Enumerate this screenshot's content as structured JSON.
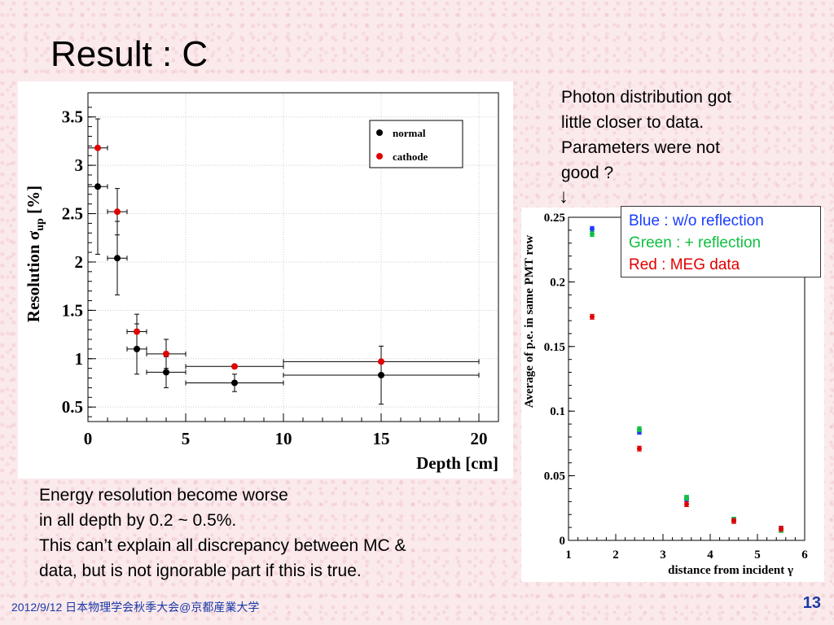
{
  "slide": {
    "title": "Result : C",
    "footer": "2012/9/12 日本物理学会秋季大会@京都産業大学",
    "page_number": "13",
    "note_right": [
      "Photon distribution got",
      "little closer to data.",
      "Parameters were not",
      "good ?"
    ],
    "arrow": "↓",
    "note_bottom": [
      "Energy resolution become worse",
      "in all depth by 0.2 ~ 0.5%.",
      "This can’t explain all discrepancy between MC &",
      "data, but is not ignorable part if this is true."
    ],
    "legend_right": [
      {
        "text": "Blue : w/o reflection",
        "color": "#1a3cff"
      },
      {
        "text": "Green : + reflection",
        "color": "#10c040"
      },
      {
        "text": "Red : MEG data",
        "color": "#e00000"
      }
    ]
  },
  "chart_data": [
    {
      "type": "scatter",
      "title": "",
      "xlabel": "Depth [cm]",
      "ylabel": "Resolution σ_up [%]",
      "ylabel_main": "Resolution σ",
      "ylabel_sub": "up",
      "ylabel_unit": " [%]",
      "xlim": [
        0,
        21
      ],
      "ylim": [
        0.35,
        3.75
      ],
      "xticks": [
        0,
        5,
        10,
        15,
        20
      ],
      "xtick_labels": [
        "0",
        "5",
        "10",
        "15",
        "20"
      ],
      "yticks": [
        0.5,
        1,
        1.5,
        2,
        2.5,
        3,
        3.5
      ],
      "ytick_labels": [
        "0.5",
        "1",
        "1.5",
        "2",
        "2.5",
        "3",
        "3.5"
      ],
      "legend": [
        "normal",
        "cathode"
      ],
      "legend_position": "top-right",
      "grid": true,
      "series": [
        {
          "name": "normal",
          "color": "#000000",
          "points": [
            {
              "x": 0.5,
              "y": 2.78,
              "xerr": 0.5,
              "yerr": 0.7
            },
            {
              "x": 1.5,
              "y": 2.04,
              "xerr": 0.5,
              "yerr": 0.38
            },
            {
              "x": 2.5,
              "y": 1.1,
              "xerr": 0.5,
              "yerr": 0.26
            },
            {
              "x": 4.0,
              "y": 0.86,
              "xerr": 1.0,
              "yerr": 0.16
            },
            {
              "x": 7.5,
              "y": 0.75,
              "xerr": 2.5,
              "yerr": 0.09
            },
            {
              "x": 15.0,
              "y": 0.83,
              "xerr": 5.0,
              "yerr": 0.3
            }
          ]
        },
        {
          "name": "cathode",
          "color": "#e00000",
          "points": [
            {
              "x": 0.5,
              "y": 3.18,
              "xerr": 0.5,
              "yerr": 0.0
            },
            {
              "x": 1.5,
              "y": 2.52,
              "xerr": 0.5,
              "yerr": 0.24
            },
            {
              "x": 2.5,
              "y": 1.28,
              "xerr": 0.5,
              "yerr": 0.18
            },
            {
              "x": 4.0,
              "y": 1.05,
              "xerr": 1.0,
              "yerr": 0.15
            },
            {
              "x": 7.5,
              "y": 0.92,
              "xerr": 2.5,
              "yerr": 0.0
            },
            {
              "x": 15.0,
              "y": 0.97,
              "xerr": 5.0,
              "yerr": 0.0
            }
          ]
        }
      ]
    },
    {
      "type": "scatter",
      "title": "",
      "xlabel": "distance from incident γ",
      "ylabel": "Average of p.e. in same PMT row",
      "xlim": [
        1,
        6
      ],
      "ylim": [
        0,
        0.25
      ],
      "xticks": [
        1,
        2,
        3,
        4,
        5,
        6
      ],
      "xtick_labels": [
        "1",
        "2",
        "3",
        "4",
        "5",
        "6"
      ],
      "yticks": [
        0,
        0.05,
        0.1,
        0.15,
        0.2,
        0.25
      ],
      "ytick_labels": [
        "0",
        "0.05",
        "0.1",
        "0.15",
        "0.2",
        "0.25"
      ],
      "series": [
        {
          "name": "w/o reflection",
          "color": "#1a3cff",
          "points": [
            {
              "x": 1.5,
              "y": 0.241
            },
            {
              "x": 2.5,
              "y": 0.084
            },
            {
              "x": 3.5,
              "y": 0.032
            },
            {
              "x": 4.5,
              "y": 0.016
            },
            {
              "x": 5.5,
              "y": 0.009
            }
          ]
        },
        {
          "name": "+ reflection",
          "color": "#10c040",
          "points": [
            {
              "x": 1.5,
              "y": 0.237
            },
            {
              "x": 2.5,
              "y": 0.086
            },
            {
              "x": 3.5,
              "y": 0.033
            },
            {
              "x": 4.5,
              "y": 0.016
            },
            {
              "x": 5.5,
              "y": 0.008
            }
          ]
        },
        {
          "name": "MEG data",
          "color": "#e00000",
          "points": [
            {
              "x": 1.5,
              "y": 0.173
            },
            {
              "x": 2.5,
              "y": 0.071
            },
            {
              "x": 3.5,
              "y": 0.028
            },
            {
              "x": 4.5,
              "y": 0.015
            },
            {
              "x": 5.5,
              "y": 0.009
            }
          ]
        }
      ]
    }
  ]
}
